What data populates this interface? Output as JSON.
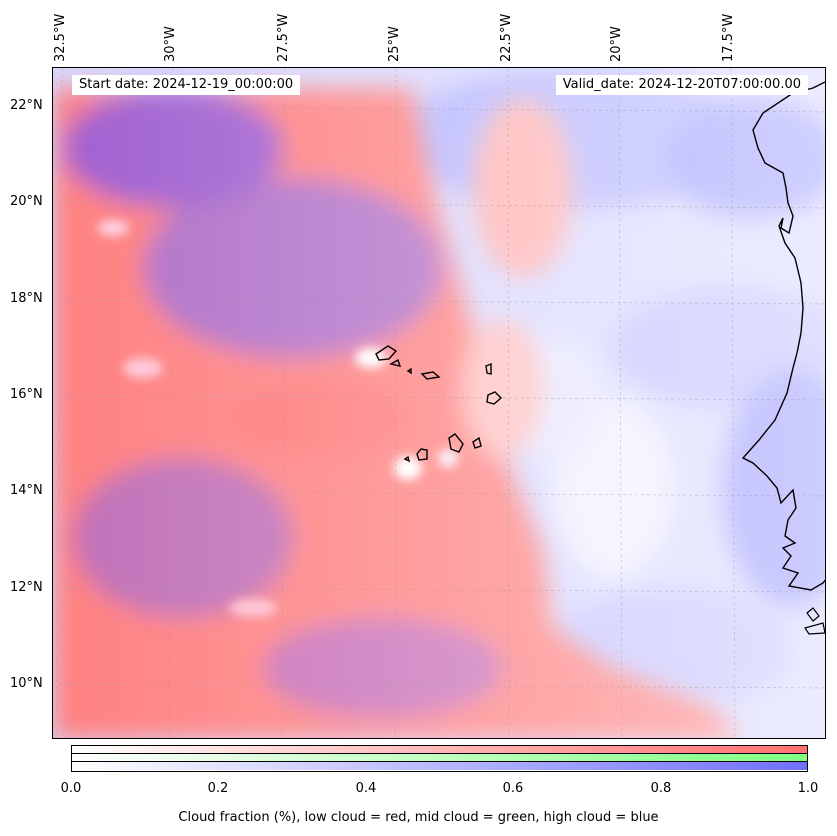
{
  "map": {
    "start_date": "Start date: 2024-12-19_00:00:00",
    "valid_date": "Valid_date: 2024-12-20T07:00:00.00",
    "lon_labels": [
      "32.5°W",
      "30°W",
      "27.5°W",
      "25°W",
      "22.5°W",
      "20°W",
      "17.5°W"
    ],
    "lat_labels": [
      "22°N",
      "20°N",
      "18°N",
      "16°N",
      "14°N",
      "12°N",
      "10°N"
    ],
    "colors": {
      "low_cloud": "#ff7070",
      "mid_cloud": "#80ff80",
      "high_cloud": "#7070ff"
    }
  },
  "colorbar": {
    "ticks": [
      "0.0",
      "0.2",
      "0.4",
      "0.6",
      "0.8",
      "1.0"
    ],
    "caption": "Cloud fraction (%), low cloud = red, mid cloud = green, high cloud = blue"
  }
}
